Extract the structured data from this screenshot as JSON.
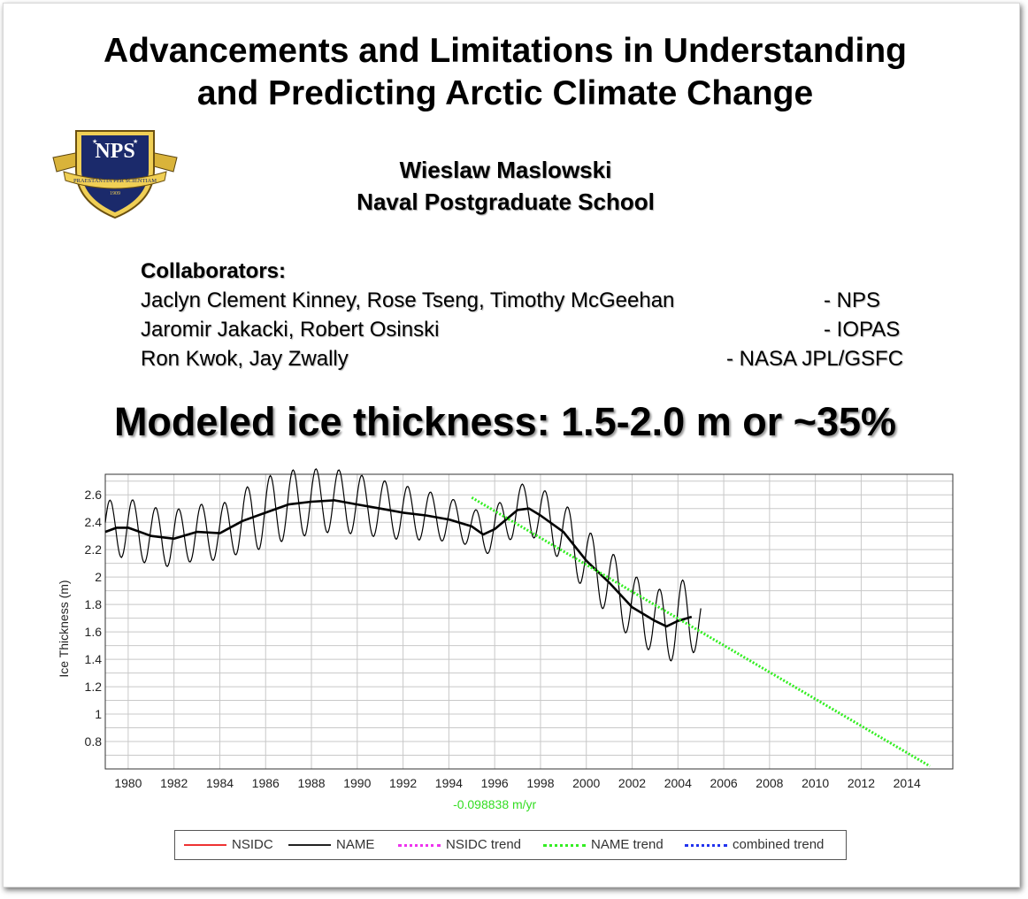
{
  "title": [
    "Advancements and Limitations in Understanding",
    "and Predicting Arctic Climate Change"
  ],
  "logo": {
    "text": "NPS",
    "motto": "PRAESTANTIA PER SCIENTIAM",
    "year": "1909"
  },
  "author": {
    "name": "Wieslaw Maslowski",
    "affiliation": "Naval Postgraduate School"
  },
  "collaborators": {
    "heading": "Collaborators:",
    "rows": [
      {
        "names": "Jaclyn Clement Kinney, Rose Tseng, Timothy McGeehan",
        "org": "- NPS"
      },
      {
        "names": "Jaromir Jakacki, Robert Osinski",
        "org": "- IOPAS"
      },
      {
        "names": "Ron Kwok, Jay Zwally",
        "org": "- NASA JPL/GSFC"
      }
    ]
  },
  "headline": "Modeled ice thickness: 1.5-2.0 m or ~35%",
  "chart_data": {
    "type": "line",
    "ylabel": "Ice Thickness (m)",
    "xlim": [
      1979,
      2016
    ],
    "ylim": [
      0.6,
      2.75
    ],
    "x_ticks": [
      1980,
      1982,
      1984,
      1986,
      1988,
      1990,
      1992,
      1994,
      1996,
      1998,
      2000,
      2002,
      2004,
      2006,
      2008,
      2010,
      2012,
      2014
    ],
    "y_ticks": [
      0.8,
      1,
      1.2,
      1.4,
      1.6,
      1.8,
      2,
      2.2,
      2.4,
      2.6
    ],
    "y_tick_labels": [
      "0.8",
      "1",
      "1.2",
      "1.4",
      "1.6",
      "1.8",
      "2",
      "2.2",
      "2.4",
      "2.6"
    ],
    "grid": true,
    "trend_annotation": "-0.098838 m/yr",
    "series": [
      {
        "name": "NAME",
        "color": "#000000",
        "style": "monthly",
        "x_start": 1979.0,
        "x_end": 2005.0,
        "amplitude": [
          [
            1979,
            0.22
          ],
          [
            1984,
            0.2
          ],
          [
            1986,
            0.26
          ],
          [
            1988,
            0.24
          ],
          [
            1992,
            0.2
          ],
          [
            1995,
            0.14
          ],
          [
            1996,
            0.16
          ],
          [
            1999,
            0.22
          ],
          [
            2001,
            0.24
          ],
          [
            2003,
            0.24
          ],
          [
            2004.5,
            0.3
          ],
          [
            2005,
            0.2
          ]
        ]
      },
      {
        "name": "NAME",
        "color": "#000000",
        "style": "running-mean",
        "x": [
          1979.0,
          1979.5,
          1980,
          1981,
          1982,
          1983,
          1984,
          1985,
          1986,
          1987,
          1988,
          1989,
          1990,
          1991,
          1992,
          1993,
          1994,
          1995,
          1995.5,
          1996,
          1997,
          1997.5,
          1998,
          1999,
          2000,
          2001,
          2002,
          2003,
          2003.5,
          2004,
          2004.6
        ],
        "y": [
          2.33,
          2.36,
          2.36,
          2.3,
          2.28,
          2.33,
          2.32,
          2.41,
          2.47,
          2.53,
          2.55,
          2.56,
          2.53,
          2.5,
          2.47,
          2.45,
          2.42,
          2.37,
          2.31,
          2.35,
          2.49,
          2.5,
          2.45,
          2.33,
          2.12,
          1.96,
          1.78,
          1.68,
          1.64,
          1.68,
          1.71
        ]
      },
      {
        "name": "NAME trend",
        "color": "#33ee22",
        "style": "dotted",
        "x": [
          1995.0,
          2015.0
        ],
        "y": [
          2.58,
          0.62
        ]
      }
    ],
    "legend": {
      "placement": "bottom",
      "entries": [
        {
          "label": "NSIDC",
          "color": "#ee3333",
          "style": "solid"
        },
        {
          "label": "NAME",
          "color": "#222222",
          "style": "solid"
        },
        {
          "label": "NSIDC trend",
          "color": "#ee33ee",
          "style": "dotted"
        },
        {
          "label": "NAME trend",
          "color": "#33ee22",
          "style": "dotted"
        },
        {
          "label": "combined trend",
          "color": "#2233ee",
          "style": "dotted"
        }
      ]
    }
  }
}
